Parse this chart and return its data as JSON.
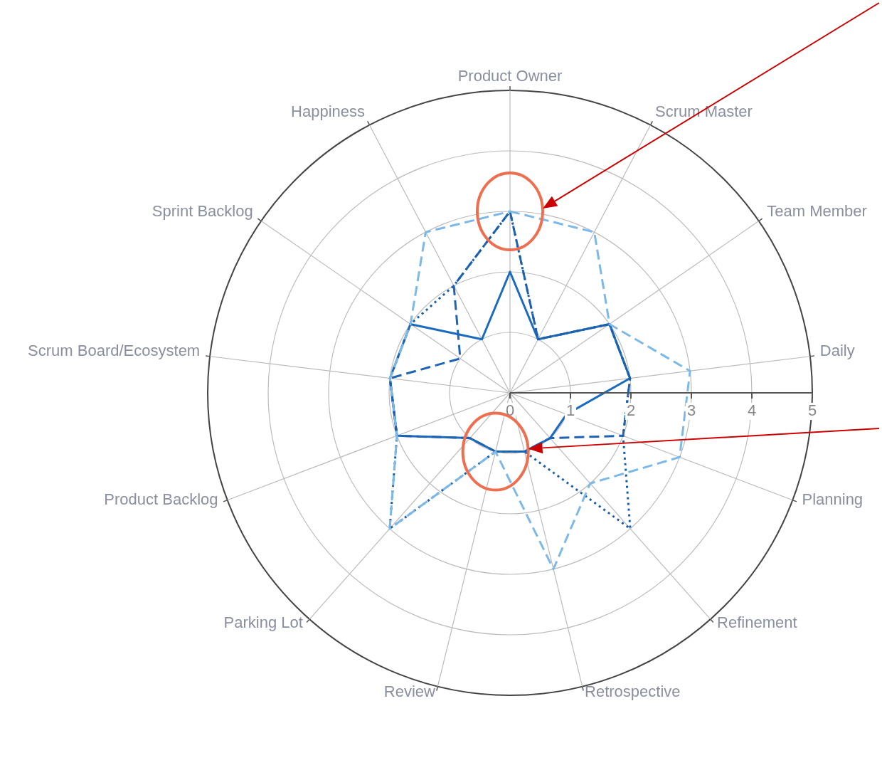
{
  "chart_data": {
    "type": "radar",
    "categories": [
      "Product Owner",
      "Scrum Master",
      "Team Member",
      "Daily",
      "Planning",
      "Refinement",
      "Retrospective",
      "Review",
      "Parking Lot",
      "Product Backlog",
      "Scrum Board/Ecosystem",
      "Sprint Backlog",
      "Happiness"
    ],
    "series": [
      {
        "color": "#7db9e8",
        "line_style": "dashed",
        "values": [
          3,
          3,
          2,
          3,
          3,
          2,
          3,
          1,
          3,
          2,
          2,
          2,
          3
        ]
      },
      {
        "color": "#1a5ea8",
        "line_style": "dotted",
        "values": [
          3,
          1,
          2,
          2,
          2,
          3,
          1,
          1,
          3,
          2,
          2,
          2,
          2
        ]
      },
      {
        "color": "#1f64b4",
        "line_style": "dashed",
        "values": [
          3,
          1,
          2,
          2,
          2,
          1,
          1,
          1,
          1,
          2,
          2,
          1,
          2
        ]
      },
      {
        "color": "#1a6bbf",
        "line_style": "solid",
        "values": [
          2,
          1,
          2,
          2,
          1,
          1,
          1,
          1,
          1,
          2,
          2,
          2,
          1
        ]
      }
    ],
    "ylim": [
      0,
      5
    ],
    "yticks": [
      0,
      1,
      2,
      3,
      4,
      5
    ],
    "grid": true,
    "legend": false,
    "marker": "none"
  }
}
